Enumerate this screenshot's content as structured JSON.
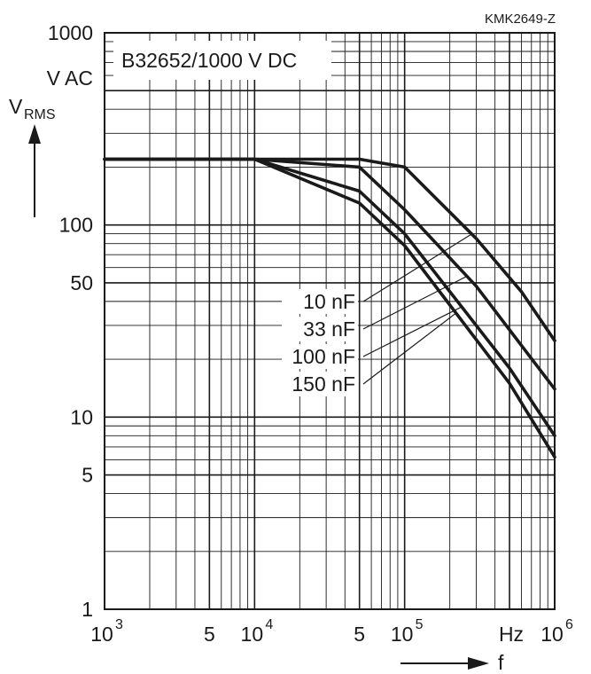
{
  "figure_code": "KMK2649-Z",
  "chart_data": {
    "type": "line",
    "title": "B32652/1000 V DC",
    "y_axis": {
      "label_main": "V",
      "label_sub": "RMS",
      "unit_label": "V AC",
      "scale": "log",
      "ylim": [
        1,
        1000
      ]
    },
    "x_axis": {
      "label": "f",
      "unit_label": "Hz",
      "scale": "log",
      "xlim": [
        1000,
        1000000
      ]
    },
    "grid": true,
    "x_ticks": [
      {
        "value": 1000,
        "base": "10",
        "exp": "3"
      },
      {
        "value": 5000,
        "base": "5",
        "exp": ""
      },
      {
        "value": 10000,
        "base": "10",
        "exp": "4"
      },
      {
        "value": 50000,
        "base": "5",
        "exp": ""
      },
      {
        "value": 100000,
        "base": "10",
        "exp": "5"
      },
      {
        "value": 1000000,
        "base": "10",
        "exp": "6"
      }
    ],
    "y_ticks": [
      {
        "value": 1000,
        "label": "1000"
      },
      {
        "value": 100,
        "label": "100"
      },
      {
        "value": 50,
        "label": "50"
      },
      {
        "value": 10,
        "label": "10"
      },
      {
        "value": 5,
        "label": "5"
      },
      {
        "value": 1,
        "label": "1"
      }
    ],
    "series": [
      {
        "name": "10 nF",
        "points": [
          [
            1000,
            220
          ],
          [
            10000,
            220
          ],
          [
            50000,
            220
          ],
          [
            100000,
            200
          ],
          [
            300000,
            85
          ],
          [
            600000,
            45
          ],
          [
            1000000,
            25
          ]
        ]
      },
      {
        "name": "33 nF",
        "points": [
          [
            1000,
            220
          ],
          [
            10000,
            220
          ],
          [
            50000,
            200
          ],
          [
            100000,
            120
          ],
          [
            300000,
            48
          ],
          [
            1000000,
            14
          ]
        ]
      },
      {
        "name": "100 nF",
        "points": [
          [
            1000,
            220
          ],
          [
            10000,
            220
          ],
          [
            50000,
            150
          ],
          [
            100000,
            90
          ],
          [
            500000,
            18
          ],
          [
            1000000,
            8
          ]
        ]
      },
      {
        "name": "150 nF",
        "points": [
          [
            1000,
            220
          ],
          [
            10000,
            220
          ],
          [
            50000,
            130
          ],
          [
            100000,
            78
          ],
          [
            500000,
            15
          ],
          [
            1000000,
            6.2
          ]
        ]
      }
    ],
    "legend_labels": [
      "10 nF",
      "33 nF",
      "100 nF",
      "150 nF"
    ]
  }
}
